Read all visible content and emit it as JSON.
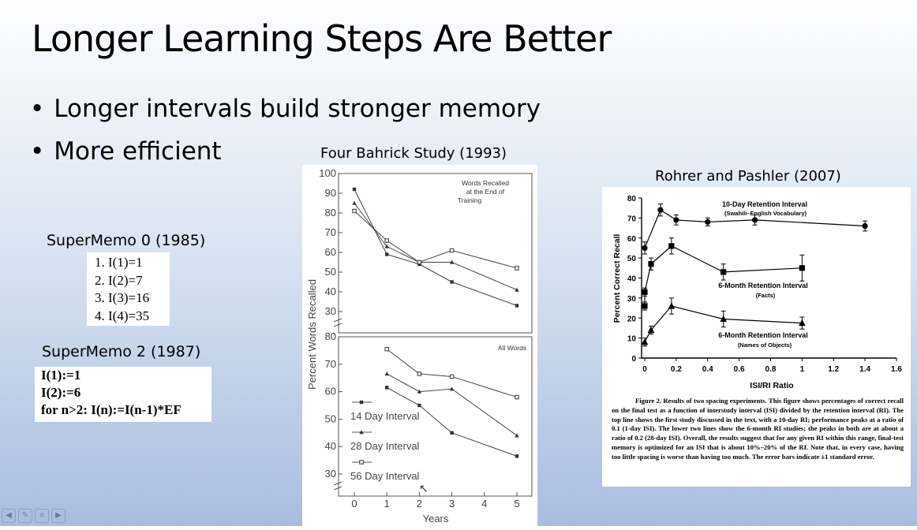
{
  "slide": {
    "title": "Longer Learning Steps Are Better",
    "bullets": [
      "Longer intervals build stronger memory",
      "More efficient"
    ]
  },
  "supermemo0": {
    "heading": "SuperMemo 0 (1985)",
    "steps": [
      "1. I(1)=1",
      "2. I(2)=7",
      "3. I(3)=16",
      "4. I(4)=35"
    ]
  },
  "supermemo2": {
    "heading": "SuperMemo 2 (1987)",
    "lines": [
      "I(1):=1",
      "I(2):=6",
      "for n>2: I(n):=I(n-1)*EF"
    ]
  },
  "bahrick": {
    "heading": "Four Bahrick Study (1993)"
  },
  "rohrer": {
    "heading": "Rohrer and Pashler (2007)",
    "caption_head": "Figure 2. Results of two spacing experiments. This figure shows percentages of correct recall on the final test as a function of interstudy interval (ISI) divided by the retention interval (RI). The top line shows the first study discussed in the text, with a 10-day RI; performance peaks at a ratio of 0.1 (1-day ISI). The lower two lines show the 6-month RI studies; the peaks in both are at about a ratio of 0.2 (28-day ISI). Overall, the results suggest that for any given RI within this range, final-test memory is optimized for an ISI that is about 10%–20% of the RI. Note that, in every case, having too little spacing is worse than having too much. The error bars indicate ±1 standard error."
  },
  "chart_data": [
    {
      "type": "line",
      "title": "Words Recalled at the End of Training",
      "xlabel": "Years",
      "ylabel": "Percent Words Recalled",
      "x": [
        0,
        1,
        2,
        3,
        4,
        5
      ],
      "xlim": [
        0,
        5
      ],
      "ylim": [
        30,
        100
      ],
      "yticks": [
        30,
        40,
        50,
        60,
        70,
        80,
        90,
        100
      ],
      "series": [
        {
          "name": "14 Day Interval",
          "marker": "square",
          "points": [
            [
              0,
              92
            ],
            [
              1,
              59
            ],
            [
              2,
              54
            ],
            [
              3,
              45
            ],
            [
              5,
              33
            ]
          ]
        },
        {
          "name": "28 Day Interval",
          "marker": "triangle",
          "points": [
            [
              0,
              85
            ],
            [
              1,
              63
            ],
            [
              2,
              55
            ],
            [
              3,
              55
            ],
            [
              5,
              41
            ]
          ]
        },
        {
          "name": "56 Day Interval",
          "marker": "open-square",
          "points": [
            [
              0,
              81
            ],
            [
              1,
              66
            ],
            [
              2,
              55
            ],
            [
              3,
              61
            ],
            [
              5,
              52
            ]
          ]
        }
      ]
    },
    {
      "type": "line",
      "title": "All Words",
      "xlabel": "Years",
      "ylabel": "Percent Words Recalled",
      "x": [
        0,
        1,
        2,
        3,
        4,
        5
      ],
      "xticks": [
        0,
        1,
        2,
        3,
        4,
        5
      ],
      "xlim": [
        0,
        5
      ],
      "ylim": [
        30,
        80
      ],
      "yticks": [
        30,
        40,
        50,
        60,
        70,
        80
      ],
      "legend": "bottom-left",
      "series": [
        {
          "name": "14 Day Interval",
          "marker": "square",
          "points": [
            [
              1,
              61.5
            ],
            [
              2,
              55
            ],
            [
              3,
              45
            ],
            [
              5,
              36.5
            ]
          ]
        },
        {
          "name": "28 Day Interval",
          "marker": "triangle",
          "points": [
            [
              1,
              66.5
            ],
            [
              2,
              60
            ],
            [
              3,
              61
            ],
            [
              5,
              44
            ]
          ]
        },
        {
          "name": "56 Day Interval",
          "marker": "open-square",
          "points": [
            [
              1,
              75.5
            ],
            [
              2,
              66.5
            ],
            [
              3,
              65.5
            ],
            [
              5,
              58
            ]
          ]
        }
      ]
    },
    {
      "type": "line",
      "xlabel": "ISI/RI Ratio",
      "ylabel": "Percent Correct Recall",
      "xlim": [
        0,
        1.6
      ],
      "ylim": [
        0,
        80
      ],
      "xticks": [
        0,
        0.2,
        0.4,
        0.6,
        0.8,
        1,
        1.2,
        1.4,
        1.6
      ],
      "xtick_labels": [
        "0",
        "0.2",
        "0.4",
        "0.6",
        "0.8",
        "1",
        "1.2",
        "1.4",
        "1.6"
      ],
      "yticks": [
        0,
        10,
        20,
        30,
        40,
        50,
        60,
        70,
        80
      ],
      "series": [
        {
          "name": "10-Day Retention Interval",
          "subtitle": "(Swahili–English Vocabulary)",
          "marker": "circle",
          "points": [
            [
              0,
              55
            ],
            [
              0.1,
              74
            ],
            [
              0.2,
              69
            ],
            [
              0.4,
              68
            ],
            [
              0.7,
              69
            ],
            [
              1.4,
              66
            ]
          ],
          "errors": [
            3,
            3,
            2.5,
            2,
            2.5,
            2.5
          ]
        },
        {
          "name": "6-Month Retention Interval",
          "subtitle": "(Facts)",
          "marker": "square",
          "points": [
            [
              0,
              26
            ],
            [
              0,
              33
            ],
            [
              0.04,
              47
            ],
            [
              0.17,
              56
            ],
            [
              0.5,
              43
            ],
            [
              1,
              45
            ]
          ],
          "errors": [
            2,
            2,
            3,
            4,
            4,
            6.5
          ]
        },
        {
          "name": "6-Month Retention Interval",
          "subtitle": "(Names of Objects)",
          "marker": "triangle",
          "points": [
            [
              0,
              8
            ],
            [
              0.04,
              14
            ],
            [
              0.17,
              26
            ],
            [
              0.5,
              19.5
            ],
            [
              1,
              17.5
            ]
          ],
          "errors": [
            2,
            2,
            4,
            4,
            3
          ]
        }
      ]
    }
  ]
}
